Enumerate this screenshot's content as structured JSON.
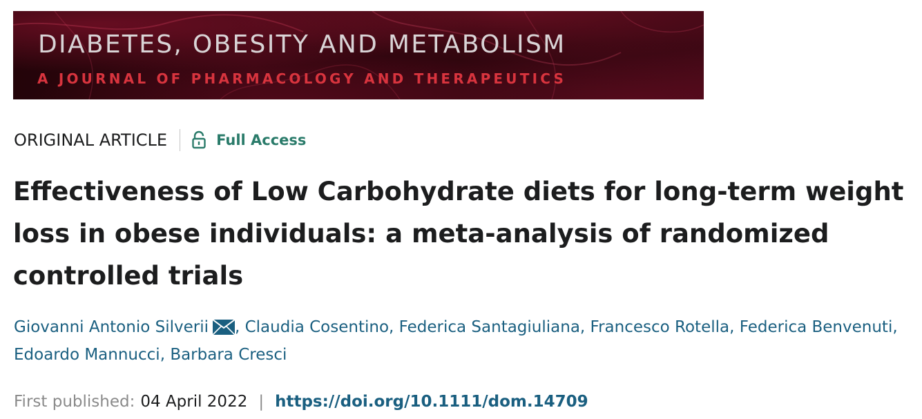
{
  "journal_banner": {
    "title": "DIABETES, OBESITY AND METABOLISM",
    "subtitle": "A JOURNAL OF PHARMACOLOGY AND THERAPEUTICS"
  },
  "article_meta": {
    "type": "ORIGINAL ARTICLE",
    "access_label": "Full Access",
    "access_icon": "unlocked-padlock-icon"
  },
  "article": {
    "title": "Effectiveness of Low Carbohydrate diets for long-term weight loss in obese individuals: a meta-analysis of randomized controlled trials"
  },
  "authors": [
    {
      "name": "Giovanni Antonio Silverii",
      "has_email": true
    },
    {
      "name": "Claudia Cosentino",
      "has_email": false
    },
    {
      "name": "Federica Santagiuliana",
      "has_email": false
    },
    {
      "name": "Francesco Rotella",
      "has_email": false
    },
    {
      "name": "Federica Benvenuti",
      "has_email": false
    },
    {
      "name": "Edoardo Mannucci",
      "has_email": false
    },
    {
      "name": "Barbara Cresci",
      "has_email": false
    }
  ],
  "publication": {
    "label": "First published:",
    "date": "04 April 2022",
    "separator": "|",
    "doi": "https://doi.org/10.1111/dom.14709"
  },
  "colors": {
    "link": "#1a5f80",
    "access": "#2a7b6a",
    "banner_bg": "#2a050c",
    "banner_accent": "#d8343e"
  }
}
